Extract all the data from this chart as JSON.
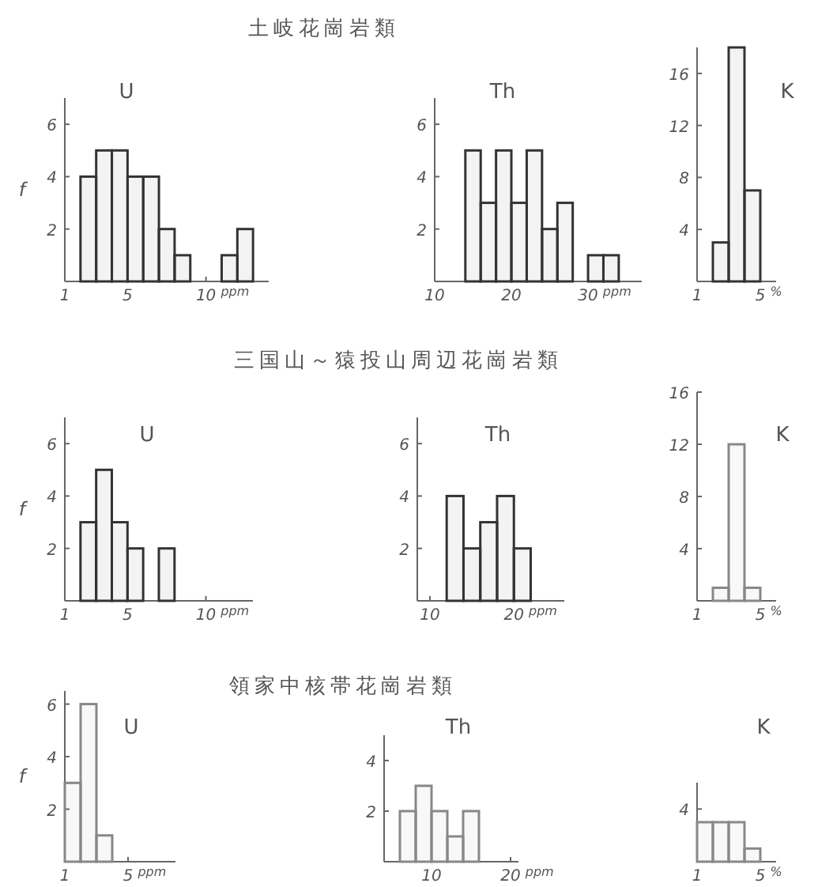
{
  "chart_data": [
    {
      "type": "histogram",
      "title": "U",
      "ylabel": "f",
      "xlabel": "ppm",
      "bins": [
        2,
        3,
        4,
        5,
        6,
        7,
        8,
        9,
        10,
        11,
        12,
        13
      ],
      "values": [
        4,
        5,
        5,
        4,
        4,
        2,
        1,
        0,
        0,
        1,
        2
      ],
      "color": "#333333",
      "xlim": [
        1,
        14
      ],
      "xticks": [
        1,
        5,
        10
      ],
      "ylim": [
        0,
        7
      ],
      "yticks": [
        2,
        4,
        6
      ],
      "grid": false
    },
    {
      "type": "histogram",
      "subtitle": "土岐花崗岩類",
      "title": "Th",
      "xlabel": "ppm",
      "bins": [
        14,
        16,
        18,
        20,
        22,
        24,
        26,
        28,
        30,
        32,
        34
      ],
      "values": [
        5,
        3,
        5,
        3,
        5,
        2,
        3,
        0,
        1,
        1
      ],
      "color": "#333333",
      "xlim": [
        10,
        37
      ],
      "xticks": [
        10,
        20,
        30
      ],
      "ylim": [
        0,
        7
      ],
      "yticks": [
        2,
        4,
        6
      ],
      "grid": false
    },
    {
      "type": "histogram",
      "title": "K",
      "xlabel": "%",
      "bins": [
        2,
        3,
        4,
        5
      ],
      "values": [
        3,
        18,
        7
      ],
      "color": "#333333",
      "xlim": [
        1,
        6
      ],
      "xticks": [
        1,
        5
      ],
      "ylim": [
        0,
        18
      ],
      "yticks": [
        4,
        8,
        12,
        16
      ],
      "grid": false
    },
    {
      "type": "histogram",
      "title": "U",
      "ylabel": "f",
      "xlabel": "ppm",
      "bins": [
        2,
        3,
        4,
        5,
        6,
        7,
        8
      ],
      "values": [
        3,
        5,
        3,
        2,
        0,
        2
      ],
      "color": "#333333",
      "xlim": [
        1,
        13
      ],
      "xticks": [
        1,
        5,
        10
      ],
      "ylim": [
        0,
        7
      ],
      "yticks": [
        2,
        4,
        6
      ],
      "grid": false
    },
    {
      "type": "histogram",
      "subtitle": "三国山～猿投山周辺花崗岩類",
      "title": "Th",
      "xlabel": "ppm",
      "bins": [
        12,
        14,
        16,
        18,
        20,
        22
      ],
      "values": [
        4,
        2,
        3,
        4,
        2
      ],
      "color": "#333333",
      "xlim": [
        8.5,
        26
      ],
      "xticks": [
        10,
        20
      ],
      "ylim": [
        0,
        7
      ],
      "yticks": [
        2,
        4,
        6
      ],
      "grid": false
    },
    {
      "type": "histogram",
      "title": "K",
      "xlabel": "%",
      "bins": [
        2,
        3,
        4,
        5
      ],
      "values": [
        1,
        12,
        1
      ],
      "color": "#888888",
      "xlim": [
        1,
        6
      ],
      "xticks": [
        1,
        5
      ],
      "ylim": [
        0,
        16
      ],
      "yticks": [
        4,
        8,
        12,
        16
      ],
      "grid": false
    },
    {
      "type": "histogram",
      "title": "U",
      "ylabel": "f",
      "xlabel": "ppm",
      "bins": [
        1,
        2,
        3,
        4
      ],
      "values": [
        3,
        6,
        1
      ],
      "color": "#888888",
      "xlim": [
        1,
        8
      ],
      "xticks": [
        1,
        5
      ],
      "ylim": [
        0,
        6.5
      ],
      "yticks": [
        2,
        4,
        6
      ],
      "grid": false
    },
    {
      "type": "histogram",
      "subtitle": "領家中核帯花崗岩類",
      "title": "Th",
      "xlabel": "ppm",
      "bins": [
        6,
        8,
        10,
        12,
        14,
        16
      ],
      "values": [
        2,
        3,
        2,
        1,
        2
      ],
      "color": "#888888",
      "xlim": [
        4,
        21
      ],
      "xticks": [
        10,
        20
      ],
      "ylim": [
        0,
        5
      ],
      "yticks": [
        2,
        4
      ],
      "grid": false
    },
    {
      "type": "bar",
      "title": "K",
      "xlabel": "%",
      "x": [
        1.5,
        2.5,
        3.5,
        4.5
      ],
      "values": [
        3,
        3,
        3,
        1
      ],
      "color": "#888888",
      "xlim": [
        1,
        6
      ],
      "xticks": [
        1,
        5
      ],
      "ylim": [
        0,
        6
      ],
      "yticks": [
        4
      ],
      "grid": false
    }
  ]
}
